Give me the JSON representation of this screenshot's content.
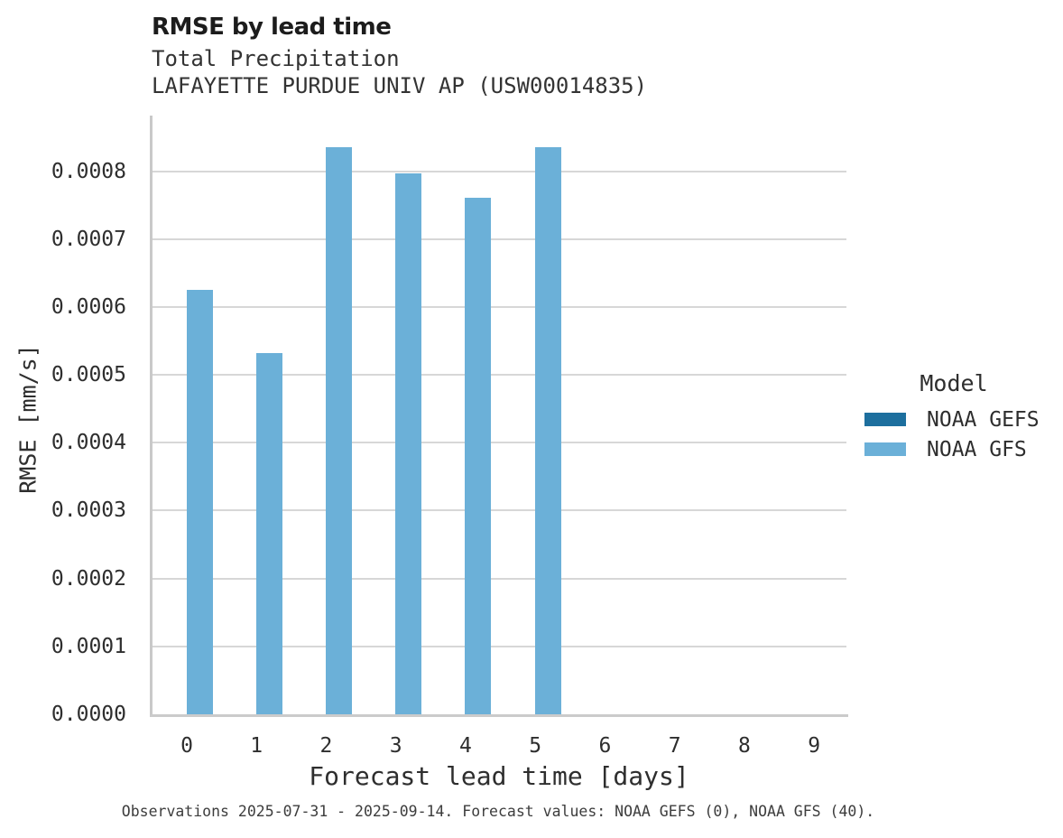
{
  "header": {
    "title": "RMSE by lead time",
    "subtitle_line1": "Total Precipitation",
    "subtitle_line2": "LAFAYETTE PURDUE UNIV AP (USW00014835)"
  },
  "caption": "Observations 2025-07-31 - 2025-09-14. Forecast values: NOAA GEFS (0), NOAA GFS (40).",
  "chart_data": {
    "type": "bar",
    "title": "RMSE by lead time",
    "subtitle": [
      "Total Precipitation",
      "LAFAYETTE PURDUE UNIV AP (USW00014835)"
    ],
    "xlabel": "Forecast lead time [days]",
    "ylabel": "RMSE [mm/s]",
    "categories": [
      "0",
      "1",
      "2",
      "3",
      "4",
      "5",
      "6",
      "7",
      "8",
      "9"
    ],
    "series": [
      {
        "name": "NOAA GEFS",
        "color": "#1d6f9e",
        "values": [
          null,
          null,
          null,
          null,
          null,
          null,
          null,
          null,
          null,
          null
        ]
      },
      {
        "name": "NOAA GFS",
        "color": "#6bb0d8",
        "values": [
          0.000625,
          0.000532,
          0.000836,
          0.000797,
          0.000761,
          0.000836,
          null,
          null,
          null,
          null
        ]
      }
    ],
    "ylim": [
      0,
      0.000882
    ],
    "ytick_labels": [
      "0.0000",
      "0.0001",
      "0.0002",
      "0.0003",
      "0.0004",
      "0.0005",
      "0.0006",
      "0.0007",
      "0.0008"
    ],
    "grid": "horizontal",
    "legend": {
      "title": "Model",
      "position": "right of plot"
    },
    "colors": {
      "bar_gefs": "#1d6f9e",
      "bar_gfs": "#6bb0d8",
      "gridline": "#d7d7d7",
      "spine": "#c9c9c9",
      "text": "#2e2e2e"
    }
  }
}
